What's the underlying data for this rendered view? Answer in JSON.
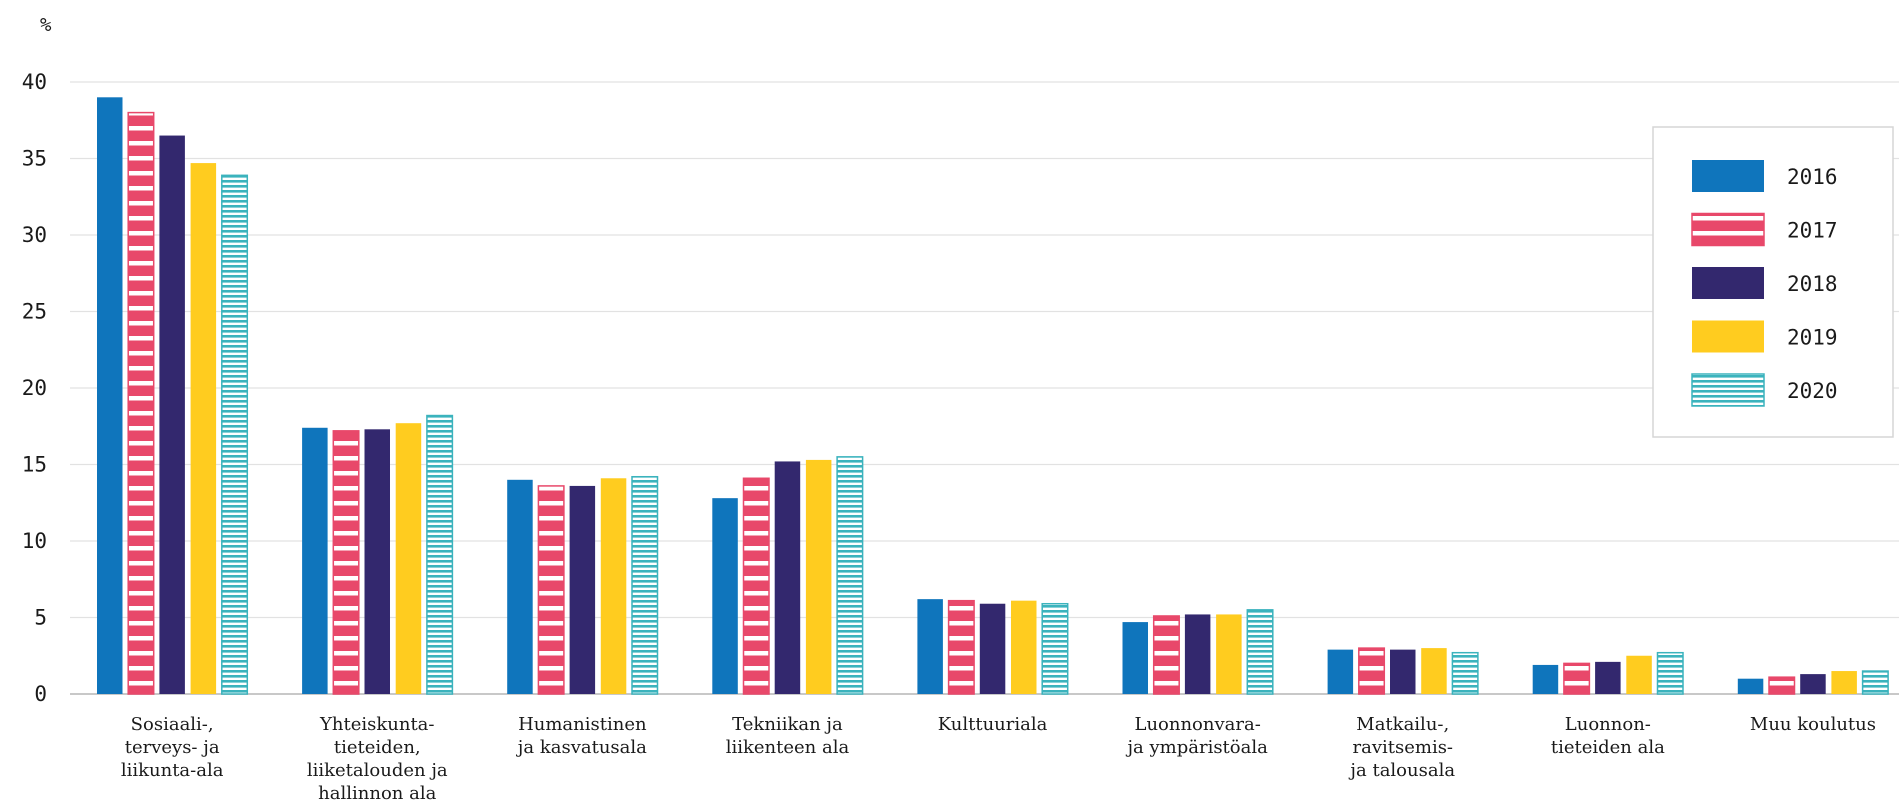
{
  "chart_data": {
    "type": "bar",
    "ylabel": "%",
    "ylim": [
      0,
      40
    ],
    "yticks": [
      0,
      5,
      10,
      15,
      20,
      25,
      30,
      35,
      40
    ],
    "grid": true,
    "legend_position": "right",
    "categories": [
      [
        "Sosiaali-,",
        "terveys- ja",
        "liikunta-ala"
      ],
      [
        "Yhteiskunta-",
        "tieteiden,",
        "liiketalouden ja",
        "hallinnon ala"
      ],
      [
        "Humanistinen",
        "ja kasvatusala"
      ],
      [
        "Tekniikan ja",
        "liikenteen ala"
      ],
      [
        "Kulttuuriala"
      ],
      [
        "Luonnonvara-",
        "ja ympäristöala"
      ],
      [
        "Matkailu-,",
        "ravitsemis-",
        "ja talousala"
      ],
      [
        "Luonnon-",
        "tieteiden ala"
      ],
      [
        "Muu koulutus"
      ]
    ],
    "series": [
      {
        "name": "2016",
        "color": "#0f75bc",
        "pattern": "solid",
        "values": [
          39.0,
          17.4,
          14.0,
          12.8,
          6.2,
          4.7,
          2.9,
          1.9,
          1.0
        ]
      },
      {
        "name": "2017",
        "color": "#e8486a",
        "pattern": "white-stripes",
        "values": [
          38.0,
          17.2,
          13.6,
          14.1,
          6.1,
          5.1,
          3.0,
          2.0,
          1.1
        ]
      },
      {
        "name": "2018",
        "color": "#33286e",
        "pattern": "solid",
        "values": [
          36.5,
          17.3,
          13.6,
          15.2,
          5.9,
          5.2,
          2.9,
          2.1,
          1.3
        ]
      },
      {
        "name": "2019",
        "color": "#ffcc1f",
        "pattern": "solid",
        "values": [
          34.7,
          17.7,
          14.1,
          15.3,
          6.1,
          5.2,
          3.0,
          2.5,
          1.5
        ]
      },
      {
        "name": "2020",
        "color": "#3bb3bd",
        "pattern": "lines",
        "values": [
          33.9,
          18.2,
          14.2,
          15.5,
          5.9,
          5.5,
          2.7,
          2.7,
          1.5
        ]
      }
    ]
  }
}
